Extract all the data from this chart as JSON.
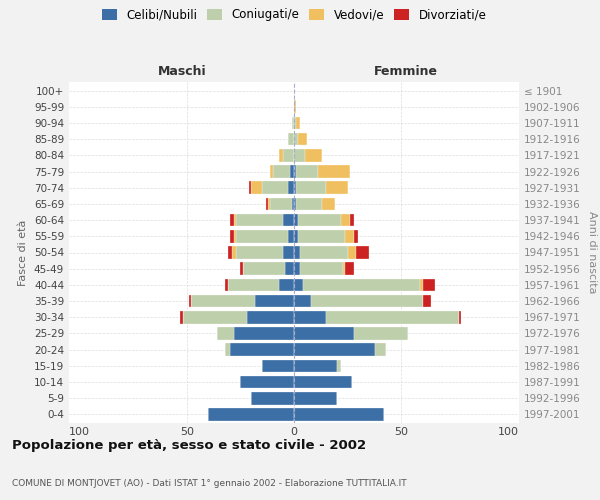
{
  "age_groups": [
    "0-4",
    "5-9",
    "10-14",
    "15-19",
    "20-24",
    "25-29",
    "30-34",
    "35-39",
    "40-44",
    "45-49",
    "50-54",
    "55-59",
    "60-64",
    "65-69",
    "70-74",
    "75-79",
    "80-84",
    "85-89",
    "90-94",
    "95-99",
    "100+"
  ],
  "birth_years": [
    "1997-2001",
    "1992-1996",
    "1987-1991",
    "1982-1986",
    "1977-1981",
    "1972-1976",
    "1967-1971",
    "1962-1966",
    "1957-1961",
    "1952-1956",
    "1947-1951",
    "1942-1946",
    "1937-1941",
    "1932-1936",
    "1927-1931",
    "1922-1926",
    "1917-1921",
    "1912-1916",
    "1907-1911",
    "1902-1906",
    "≤ 1901"
  ],
  "colors": {
    "celibe": "#3C6FA5",
    "coniugato": "#BECFAB",
    "vedovo": "#F0C060",
    "divorziato": "#CC2222"
  },
  "maschi": {
    "celibe": [
      40,
      20,
      25,
      15,
      30,
      28,
      22,
      18,
      7,
      4,
      5,
      3,
      5,
      1,
      3,
      2,
      0,
      0,
      0,
      0,
      0
    ],
    "coniugato": [
      0,
      0,
      0,
      0,
      2,
      8,
      30,
      30,
      24,
      20,
      22,
      24,
      22,
      10,
      12,
      8,
      5,
      3,
      1,
      0,
      0
    ],
    "vedovo": [
      0,
      0,
      0,
      0,
      0,
      0,
      0,
      0,
      0,
      0,
      2,
      1,
      1,
      1,
      5,
      1,
      2,
      0,
      0,
      0,
      0
    ],
    "divorziato": [
      0,
      0,
      0,
      0,
      0,
      0,
      1,
      1,
      1,
      1,
      2,
      2,
      2,
      1,
      1,
      0,
      0,
      0,
      0,
      0,
      0
    ]
  },
  "femmine": {
    "celibe": [
      42,
      20,
      27,
      20,
      38,
      28,
      15,
      8,
      4,
      3,
      3,
      2,
      2,
      1,
      1,
      1,
      0,
      0,
      0,
      0,
      0
    ],
    "coniugato": [
      0,
      0,
      0,
      2,
      5,
      25,
      62,
      52,
      55,
      20,
      22,
      22,
      20,
      12,
      14,
      10,
      5,
      2,
      1,
      0,
      0
    ],
    "vedovo": [
      0,
      0,
      0,
      0,
      0,
      0,
      0,
      0,
      1,
      1,
      4,
      4,
      4,
      6,
      10,
      15,
      8,
      4,
      2,
      1,
      0
    ],
    "divorziato": [
      0,
      0,
      0,
      0,
      0,
      0,
      1,
      4,
      6,
      4,
      6,
      2,
      2,
      0,
      0,
      0,
      0,
      0,
      0,
      0,
      0
    ]
  },
  "title": "Popolazione per età, sesso e stato civile - 2002",
  "subtitle": "COMUNE DI MONTJOVET (AO) - Dati ISTAT 1° gennaio 2002 - Elaborazione TUTTITALIA.IT",
  "label_maschi": "Maschi",
  "label_femmine": "Femmine",
  "ylabel_left": "Fasce di età",
  "ylabel_right": "Anni di nascita",
  "xlim": 105,
  "legend_labels": [
    "Celibi/Nubili",
    "Coniugati/e",
    "Vedovi/e",
    "Divorziati/e"
  ],
  "bg_color": "#F2F2F2",
  "plot_bg_color": "#FFFFFF"
}
